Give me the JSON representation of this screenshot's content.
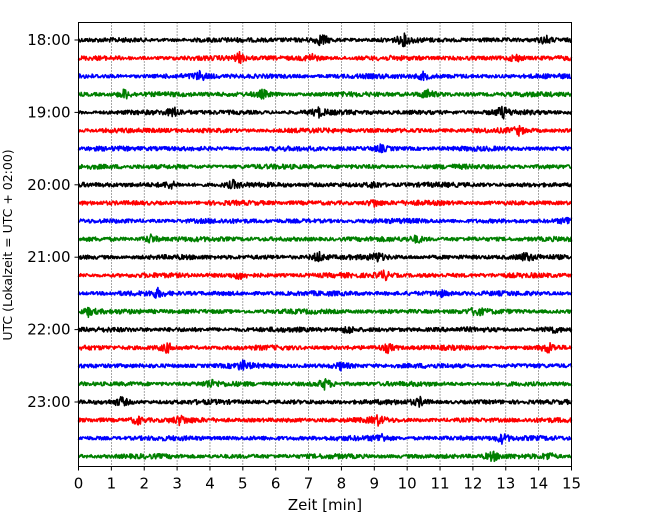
{
  "chart_data": {
    "type": "line",
    "xlabel": "Zeit  [min]",
    "ylabel": "UTC (Lokalzeit = UTC + 02:00)",
    "xlim": [
      0,
      15
    ],
    "x_ticks": [
      0,
      1,
      2,
      3,
      4,
      5,
      6,
      7,
      8,
      9,
      10,
      11,
      12,
      13,
      14,
      15
    ],
    "y_tick_labels": [
      "18:00",
      "19:00",
      "20:00",
      "21:00",
      "22:00",
      "23:00"
    ],
    "grid": "vertical dotted lines at each minute",
    "colors": [
      "#000000",
      "#ff0000",
      "#0000ff",
      "#008000"
    ],
    "traces": [
      {
        "start": "18:00",
        "color": "#000000"
      },
      {
        "start": "18:15",
        "color": "#ff0000"
      },
      {
        "start": "18:30",
        "color": "#0000ff"
      },
      {
        "start": "18:45",
        "color": "#008000"
      },
      {
        "start": "19:00",
        "color": "#000000"
      },
      {
        "start": "19:15",
        "color": "#ff0000"
      },
      {
        "start": "19:30",
        "color": "#0000ff"
      },
      {
        "start": "19:45",
        "color": "#008000"
      },
      {
        "start": "20:00",
        "color": "#000000"
      },
      {
        "start": "20:15",
        "color": "#ff0000"
      },
      {
        "start": "20:30",
        "color": "#0000ff"
      },
      {
        "start": "20:45",
        "color": "#008000"
      },
      {
        "start": "21:00",
        "color": "#000000"
      },
      {
        "start": "21:15",
        "color": "#ff0000"
      },
      {
        "start": "21:30",
        "color": "#0000ff"
      },
      {
        "start": "21:45",
        "color": "#008000"
      },
      {
        "start": "22:00",
        "color": "#000000"
      },
      {
        "start": "22:15",
        "color": "#ff0000"
      },
      {
        "start": "22:30",
        "color": "#0000ff"
      },
      {
        "start": "22:45",
        "color": "#008000"
      },
      {
        "start": "23:00",
        "color": "#000000"
      },
      {
        "start": "23:15",
        "color": "#ff0000"
      },
      {
        "start": "23:30",
        "color": "#0000ff"
      },
      {
        "start": "23:45",
        "color": "#008000"
      }
    ],
    "events": [
      {
        "trace": 0,
        "t": 7.4,
        "amp": 1.2
      },
      {
        "trace": 0,
        "t": 9.9,
        "amp": 1.0
      },
      {
        "trace": 0,
        "t": 14.2,
        "amp": 0.9
      },
      {
        "trace": 1,
        "t": 4.9,
        "amp": 0.9
      },
      {
        "trace": 1,
        "t": 7.1,
        "amp": 0.8
      },
      {
        "trace": 1,
        "t": 13.3,
        "amp": 0.8
      },
      {
        "trace": 2,
        "t": 3.7,
        "amp": 0.8
      },
      {
        "trace": 2,
        "t": 10.5,
        "amp": 0.7
      },
      {
        "trace": 3,
        "t": 1.4,
        "amp": 1.0
      },
      {
        "trace": 3,
        "t": 5.6,
        "amp": 0.8
      },
      {
        "trace": 3,
        "t": 10.6,
        "amp": 0.9
      },
      {
        "trace": 4,
        "t": 2.9,
        "amp": 0.9
      },
      {
        "trace": 4,
        "t": 7.3,
        "amp": 0.8
      },
      {
        "trace": 4,
        "t": 12.9,
        "amp": 1.1
      },
      {
        "trace": 5,
        "t": 13.4,
        "amp": 0.7
      },
      {
        "trace": 6,
        "t": 9.2,
        "amp": 0.6
      },
      {
        "trace": 8,
        "t": 2.8,
        "amp": 0.7
      },
      {
        "trace": 8,
        "t": 4.7,
        "amp": 0.7
      },
      {
        "trace": 8,
        "t": 9.0,
        "amp": 0.7
      },
      {
        "trace": 9,
        "t": 9.0,
        "amp": 0.8
      },
      {
        "trace": 10,
        "t": 14.9,
        "amp": 0.7
      },
      {
        "trace": 11,
        "t": 2.2,
        "amp": 0.9
      },
      {
        "trace": 11,
        "t": 10.3,
        "amp": 0.7
      },
      {
        "trace": 12,
        "t": 7.3,
        "amp": 1.1
      },
      {
        "trace": 12,
        "t": 9.1,
        "amp": 0.8
      },
      {
        "trace": 12,
        "t": 13.6,
        "amp": 0.8
      },
      {
        "trace": 13,
        "t": 9.3,
        "amp": 1.0
      },
      {
        "trace": 13,
        "t": 4.9,
        "amp": 0.7
      },
      {
        "trace": 14,
        "t": 2.4,
        "amp": 0.8
      },
      {
        "trace": 14,
        "t": 11.0,
        "amp": 0.7
      },
      {
        "trace": 15,
        "t": 0.3,
        "amp": 0.8
      },
      {
        "trace": 15,
        "t": 12.1,
        "amp": 0.8
      },
      {
        "trace": 16,
        "t": 8.2,
        "amp": 0.8
      },
      {
        "trace": 16,
        "t": 14.4,
        "amp": 0.7
      },
      {
        "trace": 17,
        "t": 2.7,
        "amp": 0.9
      },
      {
        "trace": 17,
        "t": 9.4,
        "amp": 0.9
      },
      {
        "trace": 17,
        "t": 14.3,
        "amp": 1.0
      },
      {
        "trace": 18,
        "t": 5.0,
        "amp": 0.8
      },
      {
        "trace": 18,
        "t": 8.0,
        "amp": 0.7
      },
      {
        "trace": 19,
        "t": 7.5,
        "amp": 1.0
      },
      {
        "trace": 19,
        "t": 4.0,
        "amp": 0.7
      },
      {
        "trace": 20,
        "t": 1.3,
        "amp": 0.9
      },
      {
        "trace": 20,
        "t": 10.4,
        "amp": 0.8
      },
      {
        "trace": 21,
        "t": 1.8,
        "amp": 0.9
      },
      {
        "trace": 21,
        "t": 3.1,
        "amp": 0.8
      },
      {
        "trace": 21,
        "t": 9.1,
        "amp": 0.8
      },
      {
        "trace": 22,
        "t": 9.2,
        "amp": 0.9
      },
      {
        "trace": 22,
        "t": 12.9,
        "amp": 0.9
      },
      {
        "trace": 23,
        "t": 12.6,
        "amp": 0.9
      },
      {
        "trace": 23,
        "t": 14.3,
        "amp": 0.7
      }
    ]
  }
}
